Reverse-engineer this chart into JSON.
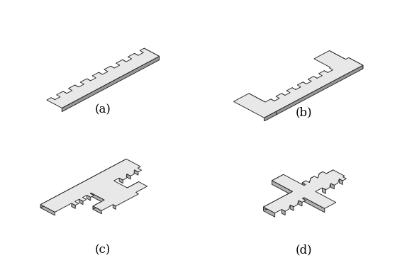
{
  "background_color": "#ffffff",
  "face_top": "#e8e8e8",
  "face_right": "#b0b0b0",
  "face_front": "#989898",
  "edge_color": "#222222",
  "label_color": "#000000",
  "labels": [
    "(a)",
    "(b)",
    "(c)",
    "(d)"
  ],
  "label_fontsize": 12
}
